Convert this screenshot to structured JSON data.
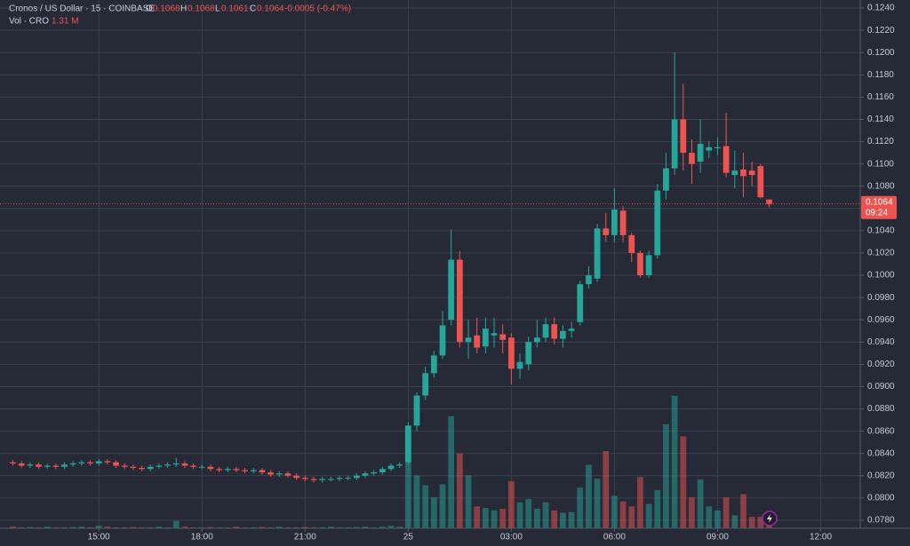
{
  "chart_data": {
    "type": "candlestick",
    "header": {
      "symbol": "Cronos / US Dollar · 15 · COINBASE",
      "o_label": "O",
      "h_label": "H",
      "l_label": "L",
      "c_label": "C",
      "change": "-0.0005 (-0.47%)",
      "vol_label": "Vol · CRO",
      "vol_value": "1.31 M",
      "countdown": "09:24"
    },
    "up_color": "#26a69a",
    "down_color": "#ef5350",
    "xlim": [
      -1.5,
      98.6
    ],
    "xticks": [
      {
        "value": 10,
        "label": "15:00"
      },
      {
        "value": 22,
        "label": "18:00"
      },
      {
        "value": 34,
        "label": "21:00"
      },
      {
        "value": 46,
        "label": "25"
      },
      {
        "value": 58,
        "label": "03:00"
      },
      {
        "value": 70,
        "label": "06:00"
      },
      {
        "value": 82,
        "label": "09:00"
      },
      {
        "value": 94,
        "label": "12:00"
      }
    ],
    "ylim": [
      0.07728,
      0.12472
    ],
    "yticks": [
      {
        "value": 0.078,
        "label": "0.0780"
      },
      {
        "value": 0.08,
        "label": "0.0800"
      },
      {
        "value": 0.082,
        "label": "0.0820"
      },
      {
        "value": 0.084,
        "label": "0.0840"
      },
      {
        "value": 0.086,
        "label": "0.0860"
      },
      {
        "value": 0.088,
        "label": "0.0880"
      },
      {
        "value": 0.09,
        "label": "0.0900"
      },
      {
        "value": 0.092,
        "label": "0.0920"
      },
      {
        "value": 0.094,
        "label": "0.0940"
      },
      {
        "value": 0.096,
        "label": "0.0960"
      },
      {
        "value": 0.098,
        "label": "0.0980"
      },
      {
        "value": 0.1,
        "label": "0.1000"
      },
      {
        "value": 0.102,
        "label": "0.1020"
      },
      {
        "value": 0.104,
        "label": "0.1040"
      },
      {
        "value": 0.106,
        "label": "0.1060"
      },
      {
        "value": 0.108,
        "label": "0.1080"
      },
      {
        "value": 0.11,
        "label": "0.1100"
      },
      {
        "value": 0.112,
        "label": "0.1120"
      },
      {
        "value": 0.114,
        "label": "0.1140"
      },
      {
        "value": 0.116,
        "label": "0.1160"
      },
      {
        "value": 0.118,
        "label": "0.1180"
      },
      {
        "value": 0.12,
        "label": "0.1200"
      },
      {
        "value": 0.122,
        "label": "0.1220"
      },
      {
        "value": 0.124,
        "label": "0.1240"
      }
    ],
    "grid": true,
    "volume_ylim": [
      0,
      65
    ],
    "open": [
      0.0832,
      0.0831,
      0.0829,
      0.083,
      0.0828,
      0.0829,
      0.0828,
      0.083,
      0.0831,
      0.0832,
      0.0831,
      0.0833,
      0.0832,
      0.0829,
      0.0828,
      0.0827,
      0.0826,
      0.0828,
      0.0829,
      0.083,
      0.0831,
      0.0829,
      0.0828,
      0.0828,
      0.0826,
      0.0825,
      0.0826,
      0.0825,
      0.0824,
      0.0825,
      0.0823,
      0.0821,
      0.0822,
      0.082,
      0.0818,
      0.0817,
      0.0816,
      0.0817,
      0.0817,
      0.0818,
      0.0818,
      0.082,
      0.0822,
      0.0823,
      0.0826,
      0.0829,
      0.0832,
      0.0865,
      0.0892,
      0.0912,
      0.0928,
      0.096,
      0.1014,
      0.094,
      0.0946,
      0.0936,
      0.0946,
      0.0947,
      0.0944,
      0.0916,
      0.092,
      0.094,
      0.0944,
      0.0956,
      0.0943,
      0.095,
      0.0958,
      0.0992,
      0.0997,
      0.1042,
      0.1036,
      0.1058,
      0.1036,
      0.102,
      0.1,
      0.1018,
      0.1076,
      0.1096,
      0.114,
      0.111,
      0.1102,
      0.1112,
      0.1114,
      0.1116,
      0.109,
      0.1095,
      0.1094,
      0.1098,
      0.1068
    ],
    "high": [
      0.0834,
      0.0833,
      0.0832,
      0.0832,
      0.0831,
      0.0831,
      0.0832,
      0.0833,
      0.0834,
      0.0834,
      0.0835,
      0.0835,
      0.0834,
      0.0831,
      0.083,
      0.0829,
      0.083,
      0.0831,
      0.0832,
      0.0836,
      0.0833,
      0.0831,
      0.083,
      0.083,
      0.0828,
      0.0828,
      0.0828,
      0.0827,
      0.0827,
      0.0827,
      0.0825,
      0.0824,
      0.0824,
      0.0822,
      0.082,
      0.0819,
      0.0819,
      0.0819,
      0.082,
      0.082,
      0.0822,
      0.0824,
      0.0825,
      0.0828,
      0.0831,
      0.0832,
      0.0868,
      0.0895,
      0.0918,
      0.0932,
      0.0968,
      0.1041,
      0.1022,
      0.096,
      0.0962,
      0.0962,
      0.0962,
      0.0956,
      0.0948,
      0.093,
      0.0945,
      0.096,
      0.0962,
      0.0962,
      0.0955,
      0.0958,
      0.0995,
      0.1008,
      0.1046,
      0.1056,
      0.1078,
      0.1062,
      0.1038,
      0.1022,
      0.1022,
      0.1082,
      0.111,
      0.12,
      0.1172,
      0.1122,
      0.114,
      0.112,
      0.1124,
      0.1146,
      0.1112,
      0.111,
      0.1102,
      0.11,
      0.1068
    ],
    "low": [
      0.0829,
      0.0827,
      0.0827,
      0.0826,
      0.0826,
      0.0826,
      0.0826,
      0.0828,
      0.0829,
      0.0829,
      0.0829,
      0.083,
      0.0827,
      0.0826,
      0.0825,
      0.0824,
      0.0824,
      0.0826,
      0.0827,
      0.0828,
      0.0827,
      0.0826,
      0.0826,
      0.0824,
      0.0823,
      0.0823,
      0.0823,
      0.0822,
      0.0822,
      0.0821,
      0.0819,
      0.0819,
      0.0818,
      0.0816,
      0.0815,
      0.0814,
      0.0814,
      0.0815,
      0.0815,
      0.0816,
      0.0816,
      0.0818,
      0.082,
      0.0821,
      0.0824,
      0.0827,
      0.083,
      0.086,
      0.0888,
      0.0908,
      0.0925,
      0.0955,
      0.0935,
      0.0925,
      0.093,
      0.093,
      0.0935,
      0.093,
      0.0902,
      0.0907,
      0.0915,
      0.0935,
      0.094,
      0.0938,
      0.0935,
      0.0944,
      0.0955,
      0.0988,
      0.0994,
      0.103,
      0.103,
      0.103,
      0.1012,
      0.0998,
      0.0998,
      0.1015,
      0.1068,
      0.109,
      0.1094,
      0.1082,
      0.1092,
      0.1105,
      0.1108,
      0.1088,
      0.1078,
      0.107,
      0.108,
      0.1069,
      0.1061
    ],
    "close": [
      0.0831,
      0.0829,
      0.083,
      0.0828,
      0.0829,
      0.0828,
      0.083,
      0.0831,
      0.0832,
      0.0831,
      0.0833,
      0.0832,
      0.0829,
      0.0828,
      0.0827,
      0.0826,
      0.0828,
      0.0829,
      0.083,
      0.0831,
      0.0829,
      0.0828,
      0.0828,
      0.0826,
      0.0825,
      0.0826,
      0.0825,
      0.0824,
      0.0825,
      0.0823,
      0.0821,
      0.0822,
      0.082,
      0.0818,
      0.0817,
      0.0816,
      0.0817,
      0.0817,
      0.0818,
      0.0818,
      0.082,
      0.0822,
      0.0823,
      0.0826,
      0.0829,
      0.083,
      0.0865,
      0.0892,
      0.0912,
      0.0928,
      0.0955,
      0.1014,
      0.094,
      0.0944,
      0.0935,
      0.0952,
      0.0948,
      0.0942,
      0.0916,
      0.0922,
      0.094,
      0.0944,
      0.0956,
      0.0943,
      0.095,
      0.0952,
      0.0992,
      0.1,
      0.1042,
      0.1036,
      0.1059,
      0.1036,
      0.102,
      0.1,
      0.1018,
      0.1076,
      0.1096,
      0.114,
      0.111,
      0.11,
      0.1118,
      0.1115,
      0.1115,
      0.1092,
      0.1094,
      0.1089,
      0.109,
      0.107,
      0.1064
    ],
    "volume": [
      0.2,
      0.1,
      0.15,
      0.1,
      0.2,
      0.1,
      0.1,
      0.15,
      0.2,
      0.1,
      0.3,
      0.2,
      0.1,
      0.1,
      0.15,
      0.1,
      0.1,
      0.2,
      0.1,
      0.9,
      0.2,
      0.1,
      0.1,
      0.15,
      0.1,
      0.1,
      0.2,
      0.1,
      0.1,
      0.15,
      0.1,
      0.2,
      0.1,
      0.1,
      0.15,
      0.1,
      0.1,
      0.2,
      0.1,
      0.1,
      0.15,
      0.2,
      0.1,
      0.2,
      0.3,
      0.2,
      8.2,
      6.5,
      5.3,
      3.8,
      5.4,
      13.8,
      9.2,
      6.5,
      2.7,
      2.5,
      2.2,
      2.4,
      5.8,
      3.2,
      3.6,
      2.4,
      3.2,
      2.2,
      1.9,
      2.0,
      5.0,
      7.8,
      6.1,
      9.5,
      4.0,
      3.3,
      2.7,
      6.3,
      3.0,
      4.7,
      12.8,
      16.3,
      11.3,
      3.8,
      6.0,
      2.7,
      2.2,
      3.8,
      1.6,
      4.2,
      1.4,
      1.4,
      1.31
    ]
  }
}
